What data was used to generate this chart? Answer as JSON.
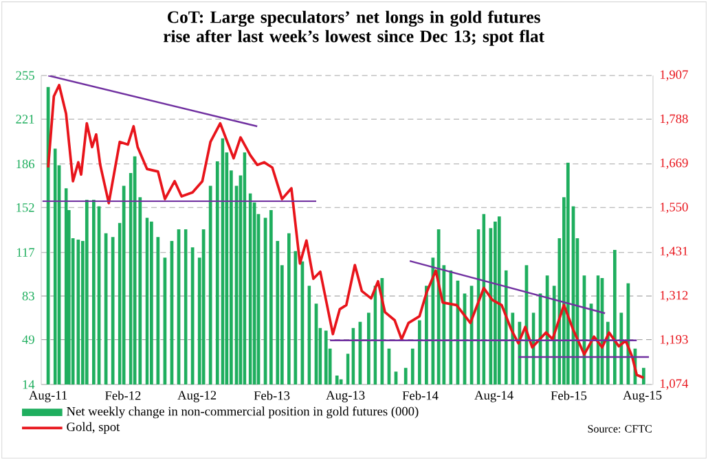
{
  "chart_data": {
    "type": "bar",
    "title": "CoT: Large speculators’ net longs in gold futures rise after last week’s lowest since Dec 13; spot flat",
    "annotations": [
      "Source: CFTC"
    ],
    "xlim": [
      "2011-07-15",
      "2015-08-27"
    ],
    "xticks": [
      {
        "value": "2011-08-01",
        "label": "Aug-11"
      },
      {
        "value": "2012-02-01",
        "label": "Feb-12"
      },
      {
        "value": "2012-08-01",
        "label": "Aug-12"
      },
      {
        "value": "2013-02-01",
        "label": "Feb-13"
      },
      {
        "value": "2013-08-01",
        "label": "Aug-13"
      },
      {
        "value": "2014-02-01",
        "label": "Feb-14"
      },
      {
        "value": "2014-08-01",
        "label": "Aug-14"
      },
      {
        "value": "2015-02-01",
        "label": "Feb-15"
      },
      {
        "value": "2015-08-01",
        "label": "Aug-15"
      }
    ],
    "ylim": [
      14,
      255
    ],
    "yticks": [
      14,
      49,
      83,
      117,
      152,
      186,
      221,
      255
    ],
    "y2lim": [
      1074,
      1907
    ],
    "y2ticks": [
      {
        "value": 1074,
        "label": "1,074"
      },
      {
        "value": 1193,
        "label": "1,193"
      },
      {
        "value": 1312,
        "label": "1,312"
      },
      {
        "value": 1431,
        "label": "1,431"
      },
      {
        "value": 1550,
        "label": "1,550"
      },
      {
        "value": 1669,
        "label": "1,669"
      },
      {
        "value": 1788,
        "label": "1,788"
      },
      {
        "value": 1907,
        "label": "1,907"
      }
    ],
    "grid": "y",
    "legend": "bottom",
    "series": [
      {
        "name": "Net weekly change in non-commercial position in gold futures (000)",
        "color": "#1fae5e",
        "x": [
          "2011-08-01",
          "2011-08-18",
          "2011-08-28",
          "2011-09-14",
          "2011-09-21",
          "2011-10-01",
          "2011-10-14",
          "2011-10-25",
          "2011-11-04",
          "2011-11-21",
          "2011-12-04",
          "2011-12-21",
          "2012-01-07",
          "2012-01-24",
          "2012-02-03",
          "2012-02-20",
          "2012-03-01",
          "2012-03-14",
          "2012-03-31",
          "2012-04-11",
          "2012-04-27",
          "2012-05-14",
          "2012-05-31",
          "2012-06-17",
          "2012-07-04",
          "2012-07-21",
          "2012-08-07",
          "2012-08-17",
          "2012-09-03",
          "2012-09-20",
          "2012-10-03",
          "2012-10-13",
          "2012-10-24",
          "2012-11-06",
          "2012-11-16",
          "2012-11-26",
          "2012-12-10",
          "2012-12-20",
          "2012-12-30",
          "2013-01-16",
          "2013-01-30",
          "2013-02-15",
          "2013-02-26",
          "2013-03-15",
          "2013-03-31",
          "2013-04-17",
          "2013-05-04",
          "2013-05-21",
          "2013-05-31",
          "2013-06-14",
          "2013-06-24",
          "2013-07-11",
          "2013-07-21",
          "2013-08-07",
          "2013-08-20",
          "2013-09-06",
          "2013-09-27",
          "2013-10-13",
          "2013-10-30",
          "2013-11-16",
          "2013-12-03",
          "2013-12-27",
          "2014-01-13",
          "2014-01-30",
          "2014-02-16",
          "2014-03-04",
          "2014-03-18",
          "2014-03-31",
          "2014-04-17",
          "2014-05-04",
          "2014-05-21",
          "2014-06-07",
          "2014-06-24",
          "2014-07-07",
          "2014-07-24",
          "2014-08-04",
          "2014-08-14",
          "2014-08-31",
          "2014-09-16",
          "2014-10-03",
          "2014-10-20",
          "2014-11-06",
          "2014-11-23",
          "2014-12-10",
          "2014-12-27",
          "2015-01-09",
          "2015-01-20",
          "2015-01-30",
          "2015-02-12",
          "2015-02-22",
          "2015-03-11",
          "2015-03-28",
          "2015-04-14",
          "2015-04-24",
          "2015-05-08",
          "2015-05-25",
          "2015-06-10",
          "2015-06-27",
          "2015-07-14",
          "2015-08-04"
        ],
        "values": [
          246,
          198,
          185,
          167,
          150,
          128,
          127,
          126,
          158,
          158,
          153,
          132,
          129,
          140,
          169,
          179,
          192,
          160,
          144,
          141,
          129,
          113,
          126,
          135,
          135,
          121,
          113,
          135,
          169,
          188,
          206,
          195,
          181,
          169,
          177,
          195,
          163,
          156,
          147,
          144,
          150,
          126,
          107,
          132,
          118,
          110,
          91,
          77,
          58,
          56,
          42,
          21,
          18,
          38,
          58,
          63,
          70,
          91,
          97,
          42,
          24,
          27,
          42,
          64,
          91,
          113,
          135,
          107,
          103,
          95,
          85,
          91,
          135,
          147,
          136,
          141,
          145,
          103,
          70,
          63,
          107,
          70,
          85,
          99,
          91,
          128,
          160,
          187,
          153,
          128,
          99,
          77,
          99,
          97,
          63,
          119,
          70,
          93,
          42,
          27
        ]
      },
      {
        "name": "Gold, spot",
        "type": "line",
        "axis": "y2",
        "color": "#e8141b",
        "x": [
          "2011-08-01",
          "2011-08-15",
          "2011-08-28",
          "2011-09-14",
          "2011-10-01",
          "2011-10-14",
          "2011-10-21",
          "2011-11-04",
          "2011-11-17",
          "2011-11-27",
          "2011-12-07",
          "2011-12-28",
          "2012-01-24",
          "2012-02-13",
          "2012-02-27",
          "2012-03-08",
          "2012-03-31",
          "2012-04-27",
          "2012-05-14",
          "2012-06-07",
          "2012-06-24",
          "2012-07-21",
          "2012-08-14",
          "2012-09-03",
          "2012-09-27",
          "2012-10-13",
          "2012-10-30",
          "2012-11-16",
          "2012-12-10",
          "2012-12-27",
          "2013-01-13",
          "2013-02-02",
          "2013-02-26",
          "2013-03-21",
          "2013-04-11",
          "2013-04-27",
          "2013-05-14",
          "2013-05-31",
          "2013-07-01",
          "2013-07-18",
          "2013-08-03",
          "2013-08-24",
          "2013-09-10",
          "2013-10-03",
          "2013-10-20",
          "2013-11-06",
          "2013-11-30",
          "2013-12-17",
          "2014-01-03",
          "2014-01-30",
          "2014-02-16",
          "2014-03-11",
          "2014-03-28",
          "2014-05-01",
          "2014-06-04",
          "2014-07-07",
          "2014-07-28",
          "2014-08-20",
          "2014-09-13",
          "2014-09-30",
          "2014-10-17",
          "2014-11-03",
          "2014-12-07",
          "2014-12-23",
          "2015-01-20",
          "2015-02-12",
          "2015-03-11",
          "2015-04-04",
          "2015-04-24",
          "2015-05-11",
          "2015-06-04",
          "2015-06-21",
          "2015-07-07",
          "2015-07-18",
          "2015-08-04"
        ],
        "values": [
          1659,
          1851,
          1881,
          1804,
          1622,
          1673,
          1640,
          1778,
          1714,
          1748,
          1666,
          1563,
          1728,
          1721,
          1770,
          1714,
          1655,
          1648,
          1574,
          1622,
          1581,
          1592,
          1622,
          1728,
          1778,
          1732,
          1684,
          1740,
          1692,
          1666,
          1673,
          1659,
          1574,
          1603,
          1400,
          1462,
          1359,
          1378,
          1210,
          1277,
          1288,
          1396,
          1326,
          1306,
          1352,
          1269,
          1247,
          1196,
          1240,
          1258,
          1321,
          1381,
          1295,
          1288,
          1240,
          1334,
          1302,
          1288,
          1221,
          1185,
          1229,
          1174,
          1214,
          1196,
          1288,
          1221,
          1155,
          1203,
          1174,
          1214,
          1177,
          1192,
          1148,
          1100,
          1092
        ]
      },
      {
        "type": "line",
        "axis": "y2",
        "color": "#7030a0",
        "x": [
          "2011-08-01",
          "2012-12-27"
        ],
        "values": [
          1907,
          1770
        ]
      },
      {
        "type": "line",
        "axis": "y2",
        "color": "#7030a0",
        "x": [
          "2011-07-18",
          "2013-05-21"
        ],
        "values": [
          1568,
          1568
        ]
      },
      {
        "type": "line",
        "axis": "y2",
        "color": "#7030a0",
        "x": [
          "2013-06-24",
          "2015-07-18"
        ],
        "values": [
          1193,
          1193
        ]
      },
      {
        "type": "line",
        "axis": "y2",
        "color": "#7030a0",
        "x": [
          "2014-01-06",
          "2015-05-01"
        ],
        "values": [
          1407,
          1266
        ]
      },
      {
        "type": "line",
        "axis": "y2",
        "color": "#7030a0",
        "x": [
          "2014-09-30",
          "2015-08-17"
        ],
        "values": [
          1148,
          1148
        ]
      }
    ]
  }
}
